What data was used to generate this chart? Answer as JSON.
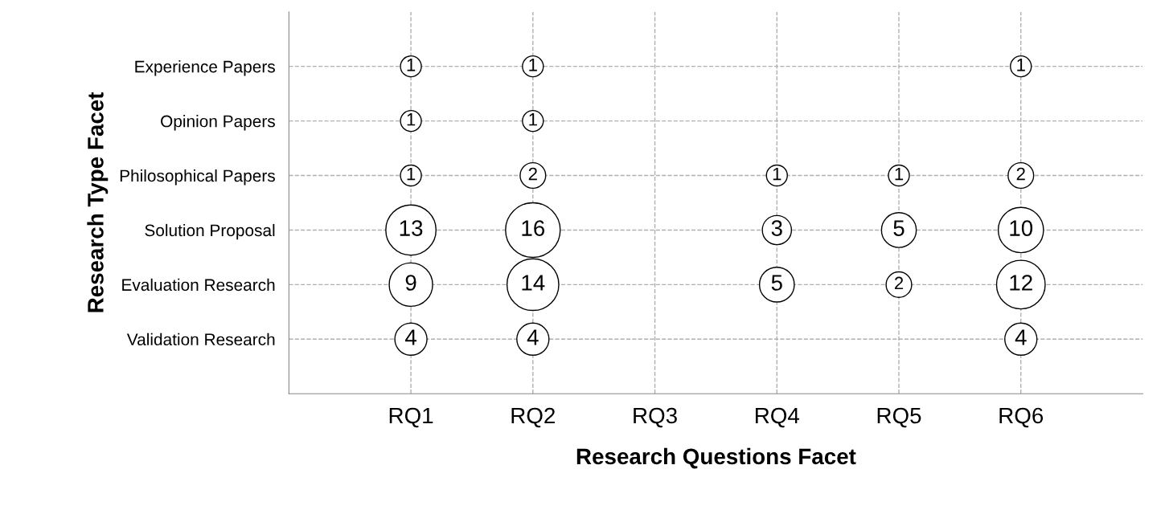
{
  "chart_data": {
    "type": "heatmap",
    "xlabel": "Research Questions Facet",
    "ylabel": "Research Type Facet",
    "categories": [
      "RQ1",
      "RQ2",
      "RQ3",
      "RQ4",
      "RQ5",
      "RQ6"
    ],
    "y_categories": [
      "Experience Papers",
      "Opinion Papers",
      "Philosophical Papers",
      "Solution Proposal",
      "Evaluation Research",
      "Validation Research"
    ],
    "cells": [
      [
        1,
        1,
        null,
        null,
        null,
        1
      ],
      [
        1,
        1,
        null,
        null,
        null,
        null
      ],
      [
        1,
        2,
        null,
        1,
        1,
        2
      ],
      [
        13,
        16,
        null,
        3,
        5,
        10
      ],
      [
        9,
        14,
        null,
        5,
        2,
        12
      ],
      [
        4,
        4,
        null,
        null,
        null,
        4
      ]
    ],
    "color": "#ffffff",
    "data_labels": true,
    "grid": true,
    "line_style": "dashed"
  }
}
